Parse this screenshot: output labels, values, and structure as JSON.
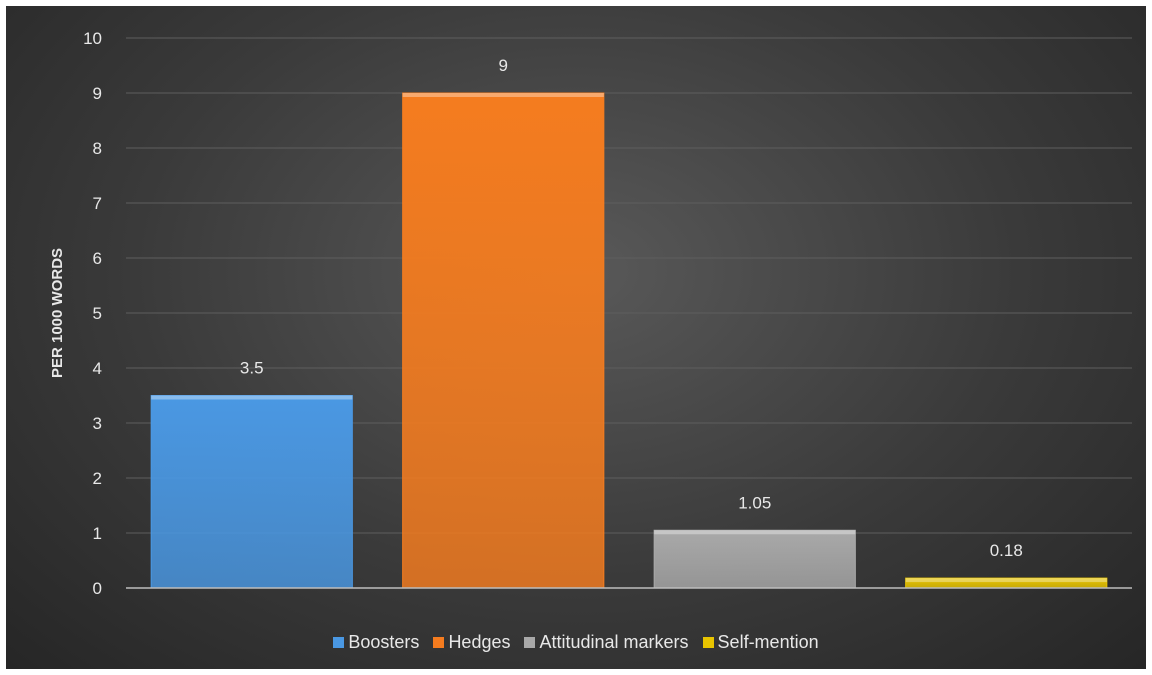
{
  "chart_data": {
    "type": "bar",
    "categories": [
      "Boosters",
      "Hedges",
      "Attitudinal markers",
      "Self-mention"
    ],
    "values": [
      3.5,
      9,
      1.05,
      0.18
    ],
    "data_labels": [
      "3.5",
      "9",
      "1.05",
      "0.18"
    ],
    "title": "",
    "xlabel": "",
    "ylabel": "PER 1000 WORDS",
    "ylim": [
      0,
      10
    ],
    "yticks": [
      "0",
      "1",
      "2",
      "3",
      "4",
      "5",
      "6",
      "7",
      "8",
      "9",
      "10"
    ],
    "grid": true,
    "legend_position": "bottom",
    "colors": [
      "#4a98e3",
      "#f57c1f",
      "#a9a9a9",
      "#e8c400"
    ],
    "background": "#404040"
  },
  "legend": [
    {
      "label": "Boosters",
      "color": "#4a98e3"
    },
    {
      "label": "Hedges",
      "color": "#f57c1f"
    },
    {
      "label": "Attitudinal markers",
      "color": "#a9a9a9"
    },
    {
      "label": "Self-mention",
      "color": "#e8c400"
    }
  ]
}
